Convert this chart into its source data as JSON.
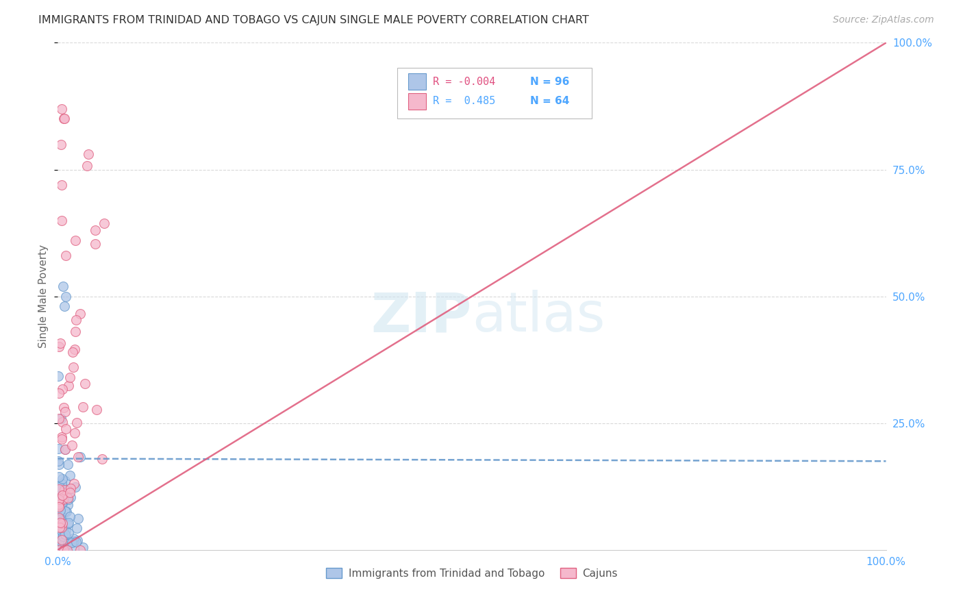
{
  "title": "IMMIGRANTS FROM TRINIDAD AND TOBAGO VS CAJUN SINGLE MALE POVERTY CORRELATION CHART",
  "source": "Source: ZipAtlas.com",
  "ylabel": "Single Male Poverty",
  "legend_blue_label": "Immigrants from Trinidad and Tobago",
  "legend_pink_label": "Cajuns",
  "watermark": "ZIPatlas",
  "bg_color": "#ffffff",
  "grid_color": "#d0d0d0",
  "blue_color": "#aec6e8",
  "blue_edge_color": "#6699cc",
  "pink_color": "#f5b8cc",
  "pink_edge_color": "#e06080",
  "title_color": "#333333",
  "axis_color": "#4da6ff",
  "source_color": "#aaaaaa",
  "ylabel_color": "#666666",
  "legend_r_blue_color": "#e05080",
  "legend_r_pink_color": "#4da6ff",
  "legend_n_color": "#4da6ff",
  "xlim": [
    0.0,
    100.0
  ],
  "ylim": [
    0.0,
    100.0
  ],
  "blue_trend_start_y": 18.0,
  "blue_trend_end_y": 17.5,
  "pink_trend_start_y": 0.0,
  "pink_trend_end_y": 100.0
}
